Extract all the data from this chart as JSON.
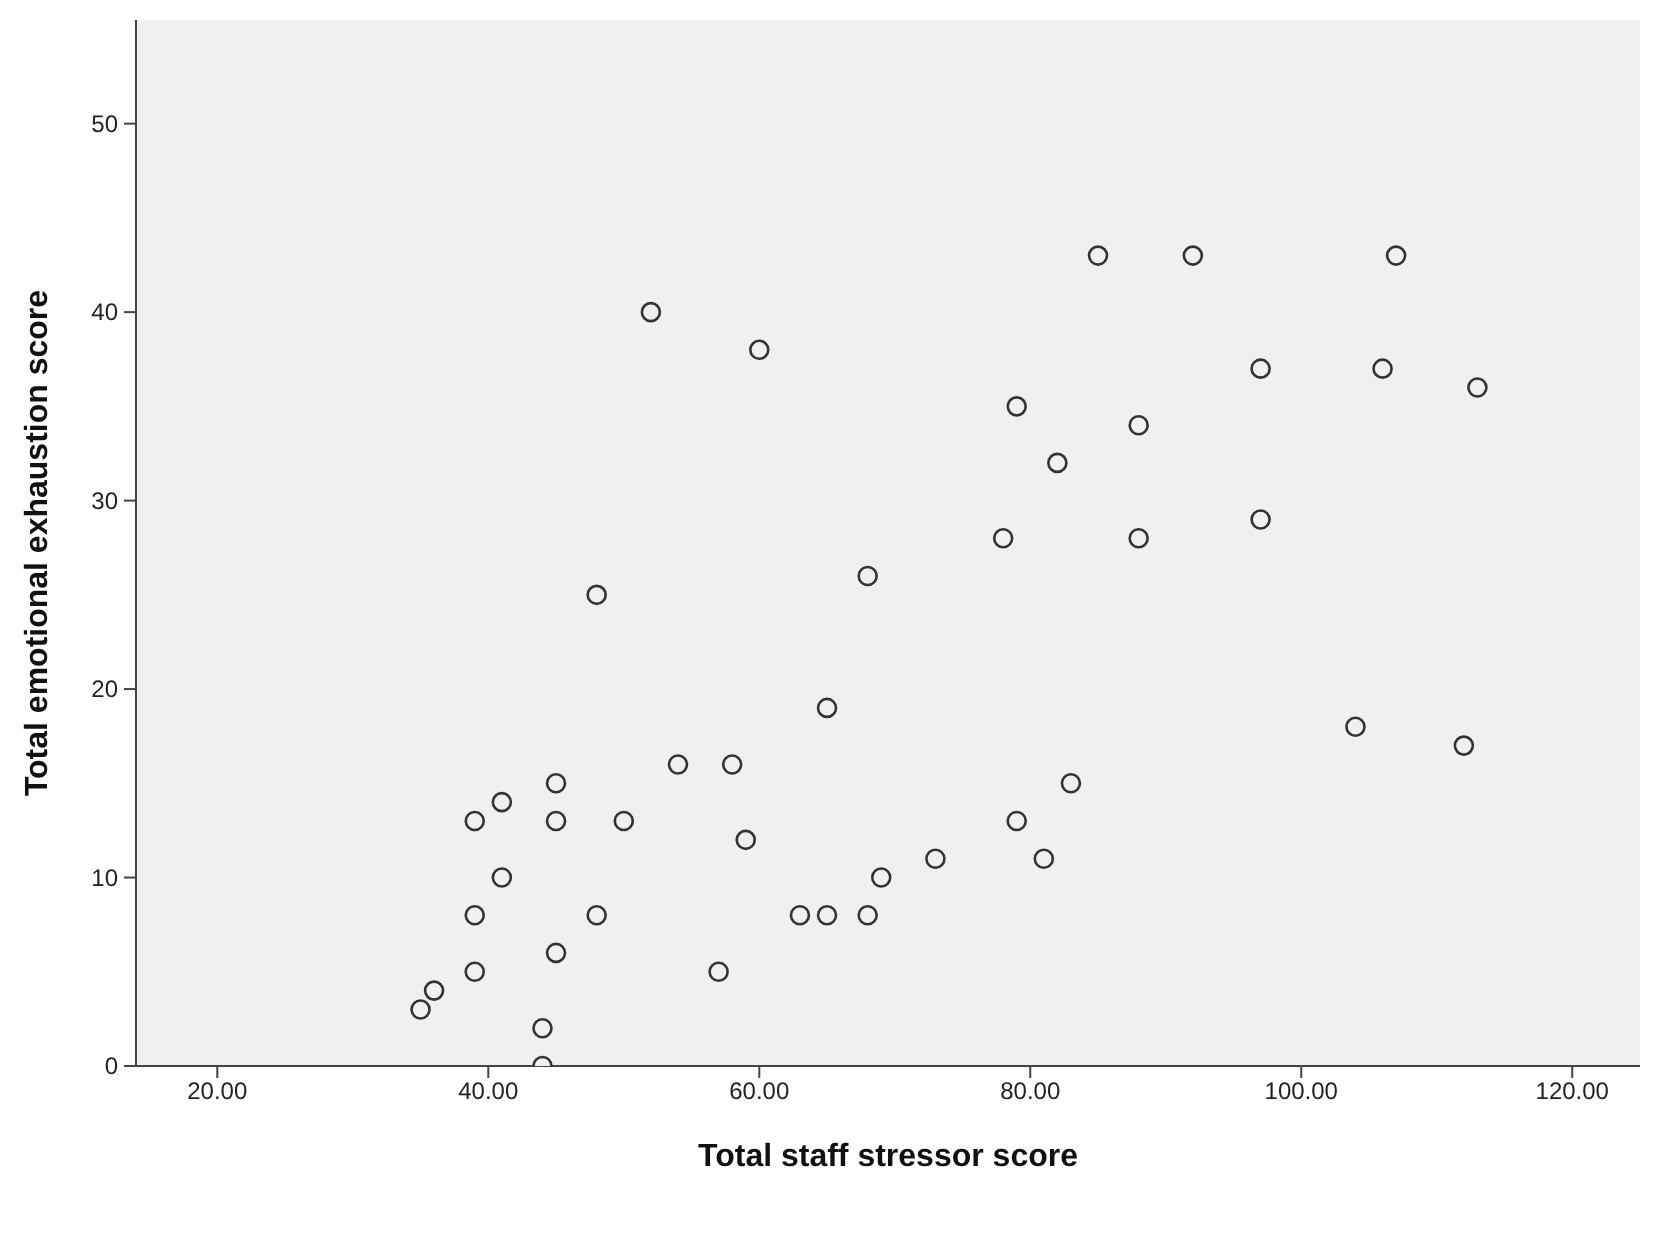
{
  "chart_data": {
    "type": "scatter",
    "xlabel": "Total staff stressor score",
    "ylabel": "Total emotional exhaustion score",
    "xlim": [
      14,
      125
    ],
    "ylim": [
      0,
      55.5
    ],
    "xticks": [
      {
        "value": 20,
        "label": "20.00"
      },
      {
        "value": 40,
        "label": "40.00"
      },
      {
        "value": 60,
        "label": "60.00"
      },
      {
        "value": 80,
        "label": "80.00"
      },
      {
        "value": 100,
        "label": "100.00"
      },
      {
        "value": 120,
        "label": "120.00"
      }
    ],
    "yticks": [
      0,
      10,
      20,
      30,
      40,
      50
    ],
    "grid": false,
    "legend": false,
    "marker": "circle",
    "series": [
      {
        "color": "#333333",
        "x": [
          35,
          36,
          39,
          39,
          39,
          41,
          41,
          44,
          44,
          45,
          45,
          45,
          48,
          48,
          50,
          52,
          54,
          57,
          58,
          59,
          60,
          63,
          65,
          65,
          68,
          68,
          69,
          73,
          78,
          79,
          79,
          81,
          82,
          83,
          85,
          88,
          88,
          92,
          97,
          97,
          104,
          106,
          107,
          112,
          113
        ],
        "values": [
          3,
          4,
          13,
          8,
          5,
          14,
          10,
          2,
          0,
          15,
          13,
          6,
          25,
          8,
          13,
          40,
          16,
          5,
          16,
          12,
          38,
          8,
          8,
          19,
          26,
          8,
          10,
          11,
          28,
          35,
          13,
          11,
          32,
          15,
          43,
          34,
          28,
          43,
          37,
          29,
          18,
          37,
          43,
          17,
          36
        ]
      }
    ]
  }
}
